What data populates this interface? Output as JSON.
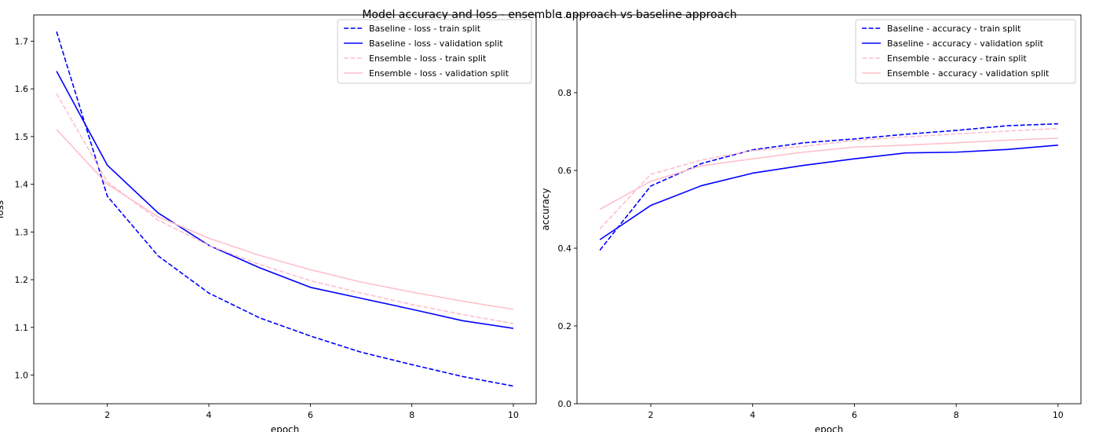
{
  "title": "Model accuracy and loss - ensemble approach vs baseline approach",
  "chart_data": [
    {
      "type": "line",
      "xlabel": "epoch",
      "ylabel": "loss",
      "xlim": [
        0.55,
        10.45
      ],
      "ylim": [
        0.94,
        1.755
      ],
      "xticks": [
        2,
        4,
        6,
        8,
        10
      ],
      "yticks": [
        1.0,
        1.1,
        1.2,
        1.3,
        1.4,
        1.5,
        1.6,
        1.7
      ],
      "x": [
        1,
        2,
        3,
        4,
        5,
        6,
        7,
        8,
        9,
        10
      ],
      "legend_position": "top-right",
      "grid": false,
      "series": [
        {
          "name": "Baseline - loss - train split",
          "color": "#0000ff",
          "dash": "dashed",
          "values": [
            1.72,
            1.375,
            1.25,
            1.172,
            1.12,
            1.082,
            1.048,
            1.022,
            0.997,
            0.977
          ]
        },
        {
          "name": "Baseline - loss - validation split",
          "color": "#0000ff",
          "dash": "solid",
          "values": [
            1.637,
            1.44,
            1.34,
            1.272,
            1.225,
            1.184,
            1.161,
            1.138,
            1.114,
            1.098
          ]
        },
        {
          "name": "Ensemble - loss - train split",
          "color": "#ffc0cb",
          "dash": "dashed",
          "values": [
            1.59,
            1.405,
            1.325,
            1.272,
            1.232,
            1.198,
            1.172,
            1.148,
            1.127,
            1.108
          ]
        },
        {
          "name": "Ensemble - loss - validation split",
          "color": "#ffc0cb",
          "dash": "solid",
          "values": [
            1.515,
            1.4,
            1.332,
            1.287,
            1.251,
            1.221,
            1.195,
            1.174,
            1.155,
            1.138
          ]
        }
      ]
    },
    {
      "type": "line",
      "xlabel": "epoch",
      "ylabel": "accuracy",
      "xlim": [
        0.55,
        10.45
      ],
      "ylim": [
        0.0,
        1.0
      ],
      "xticks": [
        2,
        4,
        6,
        8,
        10
      ],
      "yticks": [
        0.0,
        0.2,
        0.4,
        0.6,
        0.8,
        1.0
      ],
      "x": [
        1,
        2,
        3,
        4,
        5,
        6,
        7,
        8,
        9,
        10
      ],
      "legend_position": "top-right",
      "grid": false,
      "series": [
        {
          "name": "Baseline - accuracy - train split",
          "color": "#0000ff",
          "dash": "dashed",
          "values": [
            0.395,
            0.56,
            0.618,
            0.653,
            0.671,
            0.681,
            0.693,
            0.703,
            0.715,
            0.72
          ]
        },
        {
          "name": "Baseline - accuracy - validation split",
          "color": "#0000ff",
          "dash": "solid",
          "values": [
            0.422,
            0.51,
            0.561,
            0.593,
            0.613,
            0.63,
            0.645,
            0.647,
            0.654,
            0.665
          ]
        },
        {
          "name": "Ensemble - accuracy - train split",
          "color": "#ffc0cb",
          "dash": "dashed",
          "values": [
            0.45,
            0.59,
            0.627,
            0.651,
            0.662,
            0.677,
            0.686,
            0.694,
            0.701,
            0.708
          ]
        },
        {
          "name": "Ensemble - accuracy - validation split",
          "color": "#ffc0cb",
          "dash": "solid",
          "values": [
            0.5,
            0.572,
            0.612,
            0.63,
            0.647,
            0.66,
            0.665,
            0.671,
            0.678,
            0.683
          ]
        }
      ]
    }
  ]
}
